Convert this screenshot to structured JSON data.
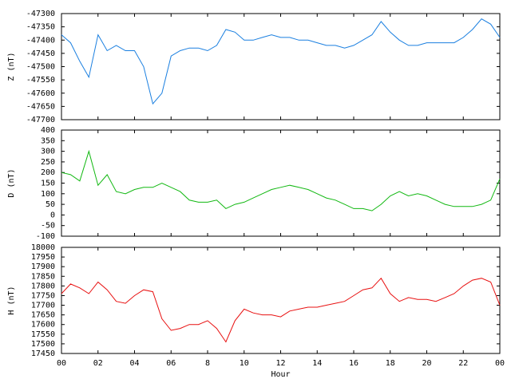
{
  "chart_data": [
    {
      "type": "line",
      "ylabel": "Z (nT)",
      "color": "#1a7fe0",
      "xlim": [
        0,
        24
      ],
      "ylim": [
        -47700,
        -47300
      ],
      "yticks": [
        -47700,
        -47650,
        -47600,
        -47550,
        -47500,
        -47450,
        -47400,
        -47350,
        -47300
      ],
      "x": [
        0,
        0.5,
        1,
        1.5,
        2,
        2.5,
        3,
        3.5,
        4,
        4.5,
        5,
        5.5,
        6,
        6.5,
        7,
        7.5,
        8,
        8.5,
        9,
        9.5,
        10,
        10.5,
        11,
        11.5,
        12,
        12.5,
        13,
        13.5,
        14,
        14.5,
        15,
        15.5,
        16,
        16.5,
        17,
        17.5,
        18,
        18.5,
        19,
        19.5,
        20,
        20.5,
        21,
        21.5,
        22,
        22.5,
        23,
        23.5,
        24
      ],
      "values": [
        -47380,
        -47410,
        -47480,
        -47540,
        -47380,
        -47440,
        -47420,
        -47440,
        -47440,
        -47500,
        -47640,
        -47600,
        -47460,
        -47440,
        -47430,
        -47430,
        -47440,
        -47420,
        -47360,
        -47370,
        -47400,
        -47400,
        -47390,
        -47380,
        -47390,
        -47390,
        -47400,
        -47400,
        -47410,
        -47420,
        -47420,
        -47430,
        -47420,
        -47400,
        -47380,
        -47330,
        -47370,
        -47400,
        -47420,
        -47420,
        -47410,
        -47410,
        -47410,
        -47410,
        -47390,
        -47360,
        -47320,
        -47340,
        -47390
      ]
    },
    {
      "type": "line",
      "ylabel": "D (nT)",
      "color": "#11b811",
      "xlim": [
        0,
        24
      ],
      "ylim": [
        -100,
        400
      ],
      "yticks": [
        -100,
        -50,
        0,
        50,
        100,
        150,
        200,
        250,
        300,
        350,
        400
      ],
      "x": [
        0,
        0.5,
        1,
        1.5,
        2,
        2.5,
        3,
        3.5,
        4,
        4.5,
        5,
        5.5,
        6,
        6.5,
        7,
        7.5,
        8,
        8.5,
        9,
        9.5,
        10,
        10.5,
        11,
        11.5,
        12,
        12.5,
        13,
        13.5,
        14,
        14.5,
        15,
        15.5,
        16,
        16.5,
        17,
        17.5,
        18,
        18.5,
        19,
        19.5,
        20,
        20.5,
        21,
        21.5,
        22,
        22.5,
        23,
        23.5,
        24
      ],
      "values": [
        200,
        190,
        160,
        300,
        140,
        190,
        110,
        100,
        120,
        130,
        130,
        150,
        130,
        110,
        70,
        60,
        60,
        70,
        30,
        50,
        60,
        80,
        100,
        120,
        130,
        140,
        130,
        120,
        100,
        80,
        70,
        50,
        30,
        30,
        20,
        50,
        90,
        110,
        90,
        100,
        90,
        70,
        50,
        40,
        40,
        40,
        50,
        70,
        170
      ]
    },
    {
      "type": "line",
      "ylabel": "H (nT)",
      "xlabel": "Hour",
      "color": "#e81010",
      "xlim": [
        0,
        24
      ],
      "ylim": [
        17450,
        18000
      ],
      "yticks": [
        17450,
        17500,
        17550,
        17600,
        17650,
        17700,
        17750,
        17800,
        17850,
        17900,
        17950,
        18000
      ],
      "xticks": [
        {
          "value": 0,
          "label": "00"
        },
        {
          "value": 2,
          "label": "02"
        },
        {
          "value": 4,
          "label": "04"
        },
        {
          "value": 6,
          "label": "06"
        },
        8,
        10,
        12,
        14,
        16,
        18,
        20,
        22,
        {
          "value": 24,
          "label": "00"
        }
      ],
      "x": [
        0,
        0.5,
        1,
        1.5,
        2,
        2.5,
        3,
        3.5,
        4,
        4.5,
        5,
        5.5,
        6,
        6.5,
        7,
        7.5,
        8,
        8.5,
        9,
        9.5,
        10,
        10.5,
        11,
        11.5,
        12,
        12.5,
        13,
        13.5,
        14,
        14.5,
        15,
        15.5,
        16,
        16.5,
        17,
        17.5,
        18,
        18.5,
        19,
        19.5,
        20,
        20.5,
        21,
        21.5,
        22,
        22.5,
        23,
        23.5,
        24
      ],
      "values": [
        17760,
        17810,
        17790,
        17760,
        17820,
        17780,
        17720,
        17710,
        17750,
        17780,
        17770,
        17630,
        17570,
        17580,
        17600,
        17600,
        17620,
        17580,
        17510,
        17620,
        17680,
        17660,
        17650,
        17650,
        17640,
        17670,
        17680,
        17690,
        17690,
        17700,
        17710,
        17720,
        17750,
        17780,
        17790,
        17840,
        17760,
        17720,
        17740,
        17730,
        17730,
        17720,
        17740,
        17760,
        17800,
        17830,
        17840,
        17820,
        17700
      ]
    }
  ]
}
